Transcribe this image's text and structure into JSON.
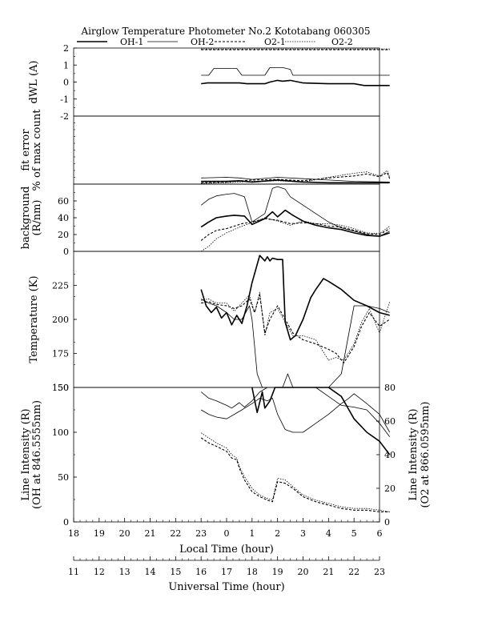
{
  "chart_data": {
    "type": "line",
    "title": "Airglow Temperature Photometer No.2  Kototabang 060305",
    "legend": [
      "OH-1",
      "OH-2",
      "O2-1",
      "O2-2"
    ],
    "legend_placement": "top",
    "x_local": {
      "label": "Local Time (hour)",
      "ticks": [
        "18",
        "19",
        "20",
        "21",
        "22",
        "23",
        "0",
        "1",
        "2",
        "3",
        "4",
        "5",
        "6"
      ],
      "range": [
        18,
        30
      ]
    },
    "x_ut": {
      "label": "Universal Time (hour)",
      "ticks": [
        "11",
        "12",
        "13",
        "14",
        "15",
        "16",
        "17",
        "18",
        "19",
        "20",
        "21",
        "22",
        "23"
      ],
      "range": [
        11,
        23
      ]
    },
    "panels": [
      {
        "id": "dwl",
        "ylabel": [
          "dWL (A)"
        ],
        "ylim": [
          -2,
          2
        ],
        "yticks": [
          "2",
          "1",
          "0",
          "-1"
        ],
        "series": [
          {
            "name": "OH-1",
            "x": [
              23,
              23.25,
              24.5,
              24.8,
              25.5,
              25.7,
              26.0,
              26.2,
              26.5,
              27.0,
              28.0,
              29.0,
              29.2,
              29.4,
              30.4
            ],
            "y": [
              -0.1,
              -0.05,
              -0.05,
              -0.1,
              -0.1,
              0.0,
              0.1,
              0.05,
              0.1,
              -0.05,
              -0.1,
              -0.1,
              -0.15,
              -0.2,
              -0.2
            ]
          },
          {
            "name": "OH-2",
            "x": [
              23,
              23.3,
              23.5,
              24.4,
              24.6,
              25.5,
              25.7,
              26.2,
              26.5,
              26.6,
              30.4
            ],
            "y": [
              0.4,
              0.4,
              0.8,
              0.8,
              0.4,
              0.4,
              0.85,
              0.85,
              0.75,
              0.4,
              0.4
            ]
          },
          {
            "name": "O2-1",
            "x": [
              23,
              30.4
            ],
            "y": [
              1.9,
              1.9
            ]
          },
          {
            "name": "O2-2",
            "x": [
              23,
              30.4
            ],
            "y": [
              1.95,
              1.95
            ]
          }
        ]
      },
      {
        "id": "fit",
        "ylabel": [
          "fit error",
          "% of max count"
        ],
        "ylim": [
          0,
          10
        ],
        "yticks": [],
        "series": [
          {
            "name": "OH-1",
            "x": [
              23,
              24,
              24.5,
              25,
              26,
              27,
              28,
              29,
              30.4
            ],
            "y": [
              0.4,
              0.4,
              0.5,
              0.3,
              0.6,
              0.3,
              0.2,
              0.2,
              0.2
            ]
          },
          {
            "name": "OH-2",
            "x": [
              23,
              24,
              24.5,
              25,
              26,
              27,
              28,
              29,
              30.4
            ],
            "y": [
              0.9,
              1.0,
              0.9,
              0.7,
              1.0,
              0.8,
              0.6,
              0.4,
              0.3
            ]
          },
          {
            "name": "O2-1",
            "x": [
              23,
              24,
              25,
              26,
              27,
              28,
              29,
              29.5,
              30,
              30.3,
              30.4
            ],
            "y": [
              0.2,
              0.3,
              0.6,
              0.7,
              0.5,
              0.9,
              1.2,
              1.5,
              1.1,
              1.7,
              0.8
            ]
          },
          {
            "name": "O2-2",
            "x": [
              23,
              24,
              25,
              26,
              27,
              28,
              29,
              29.5,
              30,
              30.3,
              30.4
            ],
            "y": [
              0.1,
              0.2,
              0.4,
              0.5,
              0.3,
              1.0,
              1.6,
              1.8,
              1.2,
              2.0,
              1.0
            ]
          }
        ]
      },
      {
        "id": "bg",
        "ylabel": [
          "background",
          "(R/nm)"
        ],
        "ylim": [
          0,
          80
        ],
        "yticks": [
          "60",
          "40",
          "20",
          "0"
        ],
        "series": [
          {
            "name": "OH-1",
            "x": [
              23,
              23.3,
              23.6,
              24,
              24.3,
              24.7,
              25,
              25.5,
              25.8,
              26,
              26.3,
              26.6,
              27,
              27.5,
              28,
              28.5,
              29,
              29.5,
              30,
              30.4
            ],
            "y": [
              29,
              35,
              40,
              42,
              43,
              42,
              32,
              39,
              47,
              41,
              49,
              43,
              36,
              31,
              28,
              26,
              22,
              19,
              18,
              22
            ]
          },
          {
            "name": "OH-2",
            "x": [
              23,
              23.3,
              23.6,
              24,
              24.3,
              24.7,
              25,
              25.5,
              25.8,
              26,
              26.3,
              26.5,
              27,
              27.5,
              28,
              28.5,
              29,
              29.5,
              30,
              30.4
            ],
            "y": [
              55,
              62,
              66,
              68,
              69,
              65,
              35,
              45,
              75,
              77,
              74,
              65,
              55,
              45,
              35,
              28,
              24,
              20,
              18,
              24
            ]
          },
          {
            "name": "O2-1",
            "x": [
              23,
              23.3,
              23.6,
              24,
              24.3,
              24.6,
              25,
              25.5,
              26,
              26.5,
              27,
              27.5,
              28,
              28.5,
              29,
              29.5,
              30,
              30.4
            ],
            "y": [
              13,
              20,
              25,
              27,
              30,
              33,
              35,
              39,
              37,
              33,
              34,
              33,
              30,
              29,
              25,
              21,
              20,
              27
            ]
          },
          {
            "name": "O2-2",
            "x": [
              23,
              23.3,
              23.6,
              24,
              24.3,
              24.6,
              25,
              25.5,
              26,
              26.5,
              27,
              27.5,
              28,
              28.5,
              29,
              29.5,
              30,
              30.4
            ],
            "y": [
              0,
              6,
              15,
              22,
              26,
              30,
              34,
              40,
              36,
              31,
              36,
              33,
              33,
              31,
              27,
              22,
              21,
              30
            ]
          }
        ]
      },
      {
        "id": "temp",
        "ylabel": [
          "Temperature (K)"
        ],
        "ylim": [
          150,
          250
        ],
        "yticks": [
          "225",
          "200",
          "175",
          "150"
        ],
        "series": [
          {
            "name": "OH-1",
            "x": [
              23,
              23.2,
              23.4,
              23.6,
              23.8,
              24,
              24.2,
              24.4,
              24.6,
              24.8,
              25,
              25.3,
              25.5,
              25.6,
              25.7,
              25.8,
              26,
              26.2,
              26.3,
              26.5,
              26.7,
              27,
              27.3,
              27.5,
              27.8,
              28,
              28.5,
              29,
              29.5,
              30,
              30.4
            ],
            "y": [
              222,
              210,
              205,
              209,
              201,
              205,
              196,
              203,
              197,
              210,
              227,
              247,
              243,
              246,
              243,
              245,
              244,
              244,
              198,
              185,
              188,
              200,
              216,
              222,
              230,
              228,
              222,
              214,
              210,
              205,
              203
            ]
          },
          {
            "name": "OH-2",
            "x": [
              23,
              23.3,
              23.6,
              24,
              24.3,
              24.6,
              24.9,
              25,
              25.2,
              25.4,
              25.6,
              25.8,
              26,
              26.2,
              26.4,
              26.6,
              27,
              27.5,
              28,
              28.5,
              28.8,
              29,
              29.5,
              30,
              30.4
            ],
            "y": [
              215,
              212,
              210,
              205,
              200,
              200,
              210,
              200,
              160,
              150,
              150,
              150,
              150,
              150,
              160,
              150,
              150,
              150,
              150,
              160,
              190,
              210,
              210,
              208,
              205
            ]
          },
          {
            "name": "O2-1",
            "x": [
              23,
              23.3,
              23.6,
              24,
              24.3,
              24.6,
              24.9,
              25.1,
              25.3,
              25.5,
              25.7,
              26,
              26.3,
              26.6,
              27,
              27.5,
              28,
              28.3,
              28.6,
              29,
              29.3,
              29.6,
              30,
              30.4
            ],
            "y": [
              212,
              213,
              211,
              210,
              208,
              210,
              215,
              205,
              218,
              190,
              200,
              210,
              200,
              190,
              185,
              182,
              178,
              175,
              168,
              180,
              195,
              205,
              195,
              200
            ]
          },
          {
            "name": "O2-2",
            "x": [
              23,
              23.3,
              23.6,
              24,
              24.3,
              24.6,
              24.9,
              25.1,
              25.3,
              25.5,
              25.7,
              26,
              26.3,
              26.6,
              27,
              27.5,
              28,
              28.3,
              28.6,
              29,
              29.3,
              29.6,
              30,
              30.4
            ],
            "y": [
              214,
              215,
              212,
              212,
              206,
              212,
              218,
              205,
              220,
              188,
              205,
              208,
              198,
              188,
              188,
              185,
              170,
              172,
              170,
              182,
              198,
              208,
              190,
              213
            ]
          }
        ]
      },
      {
        "id": "int",
        "ylabel": [
          "Line Intensity (R)",
          "(OH at 846.5555nm)"
        ],
        "ylabel_right": [
          "Line Intensity (R)",
          "(O2 at 866.0595nm)"
        ],
        "ylim": [
          0,
          150
        ],
        "ylim_right": [
          0,
          80
        ],
        "yticks": [
          "150",
          "100",
          "50",
          "0"
        ],
        "yticks_right": [
          "80",
          "60",
          "40",
          "20",
          "0"
        ],
        "series": [
          {
            "name": "OH-1",
            "axis": "left",
            "x": [
              25,
              25.2,
              25.4,
              25.5,
              25.7,
              25.9,
              26.2,
              26.5,
              27,
              27.3,
              27.6,
              28,
              28.5,
              29,
              29.5,
              30,
              30.4
            ],
            "y": [
              150,
              122,
              145,
              127,
              135,
              150,
              150,
              150,
              150,
              150,
              150,
              150,
              140,
              115,
              100,
              90,
              75
            ]
          },
          {
            "name": "OH-2",
            "axis": "left",
            "x": [
              23,
              23.3,
              23.6,
              24,
              24.2,
              24.5,
              24.7,
              25,
              25.3,
              25.6,
              25.8,
              26,
              26.3,
              26.6,
              27,
              27.5,
              28,
              28.5,
              29,
              29.5,
              30,
              30.4
            ],
            "y": [
              145,
              138,
              135,
              130,
              127,
              133,
              128,
              135,
              145,
              150,
              150,
              150,
              150,
              150,
              150,
              150,
              140,
              130,
              128,
              125,
              110,
              95
            ]
          },
          {
            "name": "OH-2 (lower)",
            "axis": "left",
            "x": [
              23,
              23.3,
              23.6,
              24,
              24.3,
              24.6,
              25,
              25.3,
              25.6,
              25.8,
              26,
              26.3,
              26.6,
              27,
              27.5,
              28,
              28.5,
              28.8,
              29,
              29.5,
              30,
              30.4
            ],
            "y": [
              125,
              120,
              117,
              115,
              120,
              125,
              132,
              138,
              135,
              138,
              120,
              103,
              100,
              100,
              110,
              120,
              132,
              138,
              143,
              132,
              120,
              100
            ]
          },
          {
            "name": "O2-1",
            "axis": "right",
            "x": [
              23,
              23.3,
              23.6,
              24,
              24.2,
              24.4,
              24.5,
              24.7,
              25,
              25.3,
              25.6,
              25.8,
              26,
              26.3,
              26.6,
              27,
              27.5,
              28,
              28.5,
              29,
              29.5,
              30,
              30.4
            ],
            "y": [
              50,
              47,
              45,
              42,
              38,
              37,
              32,
              25,
              18,
              15,
              13,
              12,
              24,
              23,
              20,
              15,
              12,
              10,
              8,
              7,
              7,
              6,
              6
            ]
          },
          {
            "name": "O2-2",
            "axis": "right",
            "x": [
              23,
              23.3,
              23.6,
              24,
              24.2,
              24.4,
              24.5,
              24.7,
              25,
              25.3,
              25.6,
              25.8,
              26,
              26.3,
              26.6,
              27,
              27.5,
              28,
              28.5,
              29,
              29.5,
              30,
              30.4
            ],
            "y": [
              53,
              50,
              47,
              44,
              40,
              38,
              33,
              27,
              20,
              16,
              14,
              13,
              26,
              25,
              21,
              16,
              13,
              11,
              9,
              8,
              8,
              7,
              6
            ]
          }
        ]
      }
    ],
    "styles": {
      "OH-1": {
        "color": "#000000",
        "width": 1.6,
        "dash": ""
      },
      "OH-2": {
        "color": "#000000",
        "width": 0.8,
        "dash": ""
      },
      "O2-1": {
        "color": "#000000",
        "width": 1.1,
        "dash": "3,2"
      },
      "O2-2": {
        "color": "#000000",
        "width": 0.8,
        "dash": "1.5,1.5"
      }
    }
  }
}
